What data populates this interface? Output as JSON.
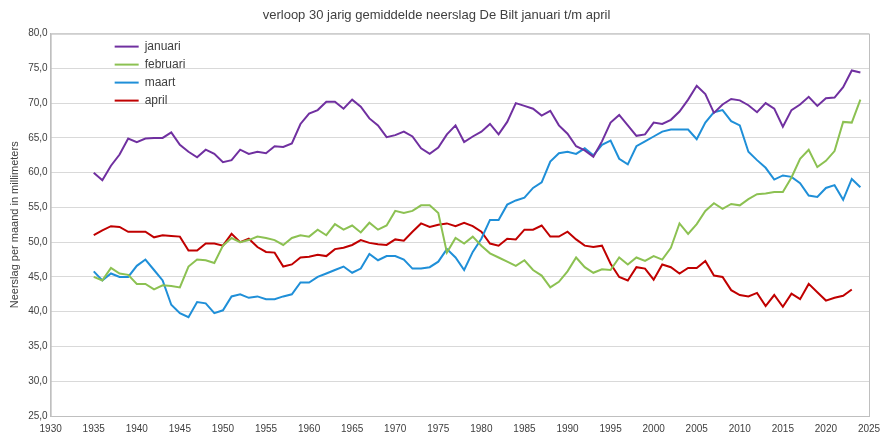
{
  "chart_data": {
    "type": "line",
    "title": "verloop 30 jarig gemiddelde neerslag De Bilt januari t/m april",
    "y_label": "Neerslag per maand in millimeters",
    "x": [
      1935,
      1936,
      1937,
      1938,
      1939,
      1940,
      1941,
      1942,
      1943,
      1944,
      1945,
      1946,
      1947,
      1948,
      1949,
      1950,
      1951,
      1952,
      1953,
      1954,
      1955,
      1956,
      1957,
      1958,
      1959,
      1960,
      1961,
      1962,
      1963,
      1964,
      1965,
      1966,
      1967,
      1968,
      1969,
      1970,
      1971,
      1972,
      1973,
      1974,
      1975,
      1976,
      1977,
      1978,
      1979,
      1980,
      1981,
      1982,
      1983,
      1984,
      1985,
      1986,
      1987,
      1988,
      1989,
      1990,
      1991,
      1992,
      1993,
      1994,
      1995,
      1996,
      1997,
      1998,
      1999,
      2000,
      2001,
      2002,
      2003,
      2004,
      2005,
      2006,
      2007,
      2008,
      2009,
      2010,
      2011,
      2012,
      2013,
      2014,
      2015,
      2016,
      2017,
      2018,
      2019,
      2020,
      2021,
      2022,
      2023,
      2024
    ],
    "series": [
      {
        "name": "januari",
        "color": "#7030a0",
        "values": [
          60,
          58.9,
          61,
          62.6,
          64.9,
          64.4,
          64.9,
          65,
          65,
          65.8,
          64,
          63,
          62.2,
          63.3,
          62.7,
          61.5,
          61.8,
          63.3,
          62.7,
          63,
          62.8,
          63.8,
          63.7,
          64.2,
          67,
          68.5,
          69,
          70.2,
          70.2,
          69.2,
          70.5,
          69.5,
          67.8,
          66.8,
          65.1,
          65.4,
          65.9,
          65.2,
          63.5,
          62.7,
          63.6,
          65.5,
          66.8,
          64.4,
          65.2,
          65.9,
          67,
          65.5,
          67.3,
          70,
          69.6,
          69.2,
          68.2,
          68.9,
          66.8,
          65.6,
          63.8,
          63.2,
          62.3,
          64.5,
          67.2,
          68.3,
          66.8,
          65.3,
          65.5,
          67.2,
          67,
          67.6,
          68.8,
          70.5,
          72.5,
          71.3,
          68.6,
          69.8,
          70.6,
          70.4,
          69.7,
          68.7,
          70,
          69.2,
          66.6,
          69,
          69.8,
          70.9,
          69.6,
          70.7,
          70.8,
          72.3,
          74.7,
          74.4
        ]
      },
      {
        "name": "februari",
        "color": "#8cc152",
        "values": [
          45,
          44.5,
          46.3,
          45.5,
          45.3,
          44,
          44,
          43.2,
          43.8,
          43.7,
          43.5,
          46.5,
          47.5,
          47.4,
          47,
          49.5,
          50.6,
          50,
          50.3,
          50.8,
          50.6,
          50.3,
          49.6,
          50.6,
          51,
          50.8,
          51.8,
          51,
          52.6,
          51.8,
          52.4,
          51.4,
          52.8,
          51.8,
          52.4,
          54.5,
          54.2,
          54.5,
          55.3,
          55.3,
          54.2,
          48.5,
          50.6,
          49.8,
          50.8,
          49.5,
          48.4,
          47.8,
          47.2,
          46.6,
          47.4,
          46,
          45.2,
          43.5,
          44.3,
          45.8,
          47.8,
          46.4,
          45.6,
          46.1,
          46,
          47.8,
          46.8,
          47.8,
          47.3,
          48,
          47.5,
          49.2,
          52.7,
          51.2,
          52.6,
          54.5,
          55.6,
          54.8,
          55.5,
          55.3,
          56.2,
          56.9,
          57,
          57.2,
          57.2,
          59.3,
          62,
          63.3,
          60.8,
          61.7,
          63.1,
          67.3,
          67.2,
          70.5
        ]
      },
      {
        "name": "maart",
        "color": "#1f8fd8",
        "values": [
          45.8,
          44.5,
          45.5,
          45,
          45,
          46.6,
          47.5,
          46,
          44.5,
          41,
          39.8,
          39.2,
          41.4,
          41.2,
          39.8,
          40.2,
          42.2,
          42.5,
          42,
          42.2,
          41.8,
          41.8,
          42.2,
          42.5,
          44.2,
          44.2,
          45,
          45.5,
          46,
          46.5,
          45.6,
          46.2,
          48.3,
          47.4,
          48,
          48,
          47.5,
          46.2,
          46.2,
          46.4,
          47.2,
          49,
          47.8,
          46,
          48.6,
          50.5,
          53.2,
          53.2,
          55.4,
          56,
          56.4,
          57.8,
          58.6,
          61.6,
          62.8,
          63,
          62.7,
          63.5,
          62.5,
          64,
          64.6,
          62,
          61.2,
          63.8,
          64.5,
          65.2,
          65.9,
          66.2,
          66.2,
          66.2,
          64.8,
          67.2,
          68.7,
          69,
          67.4,
          66.8,
          63,
          61.8,
          60.7,
          59,
          59.6,
          59.4,
          58.5,
          56.7,
          56.5,
          57.8,
          58.2,
          56.1,
          59.1,
          57.9
        ]
      },
      {
        "name": "april",
        "color": "#c00000",
        "values": [
          51,
          51.7,
          52.3,
          52.2,
          51.5,
          51.5,
          51.5,
          50.7,
          51,
          50.9,
          50.8,
          48.8,
          48.8,
          49.8,
          49.8,
          49.5,
          51.2,
          50,
          50.5,
          49.3,
          48.6,
          48.5,
          46.5,
          46.8,
          47.8,
          47.9,
          48.2,
          48,
          49,
          49.2,
          49.6,
          50.3,
          49.9,
          49.7,
          49.6,
          50.4,
          50.2,
          51.5,
          52.7,
          52.2,
          52.5,
          52.7,
          52.3,
          52.8,
          52.3,
          51.5,
          49.8,
          49.5,
          50.5,
          50.4,
          51.8,
          51.8,
          52.4,
          50.8,
          50.8,
          51.5,
          50.4,
          49.5,
          49.3,
          49.5,
          46.9,
          45,
          44.5,
          46.4,
          46.2,
          44.6,
          46.8,
          46.4,
          45.5,
          46.3,
          46.3,
          47.3,
          45.2,
          45,
          43.1,
          42.4,
          42.2,
          42.7,
          40.8,
          42.4,
          40.7,
          42.6,
          41.8,
          44,
          42.8,
          41.6,
          42,
          42.3,
          43.2,
          null
        ]
      }
    ],
    "xlim": [
      1930,
      2025
    ],
    "xticks": [
      1930,
      1935,
      1940,
      1945,
      1950,
      1955,
      1960,
      1965,
      1970,
      1975,
      1980,
      1985,
      1990,
      1995,
      2000,
      2005,
      2010,
      2015,
      2020,
      2025
    ],
    "ylim": [
      25,
      80
    ],
    "yticks": [
      {
        "value": 25,
        "label": "25,0"
      },
      {
        "value": 30,
        "label": "30,0"
      },
      {
        "value": 35,
        "label": "35,0"
      },
      {
        "value": 40,
        "label": "40,0"
      },
      {
        "value": 45,
        "label": "45,0"
      },
      {
        "value": 50,
        "label": "50,0"
      },
      {
        "value": 55,
        "label": "55,0"
      },
      {
        "value": 60,
        "label": "60,0"
      },
      {
        "value": 65,
        "label": "65,0"
      },
      {
        "value": 70,
        "label": "70,0"
      },
      {
        "value": 75,
        "label": "75,0"
      },
      {
        "value": 80,
        "label": "80,0"
      }
    ],
    "grid": "y",
    "legend": "upper left",
    "marker": "none",
    "line_style": "solid"
  }
}
